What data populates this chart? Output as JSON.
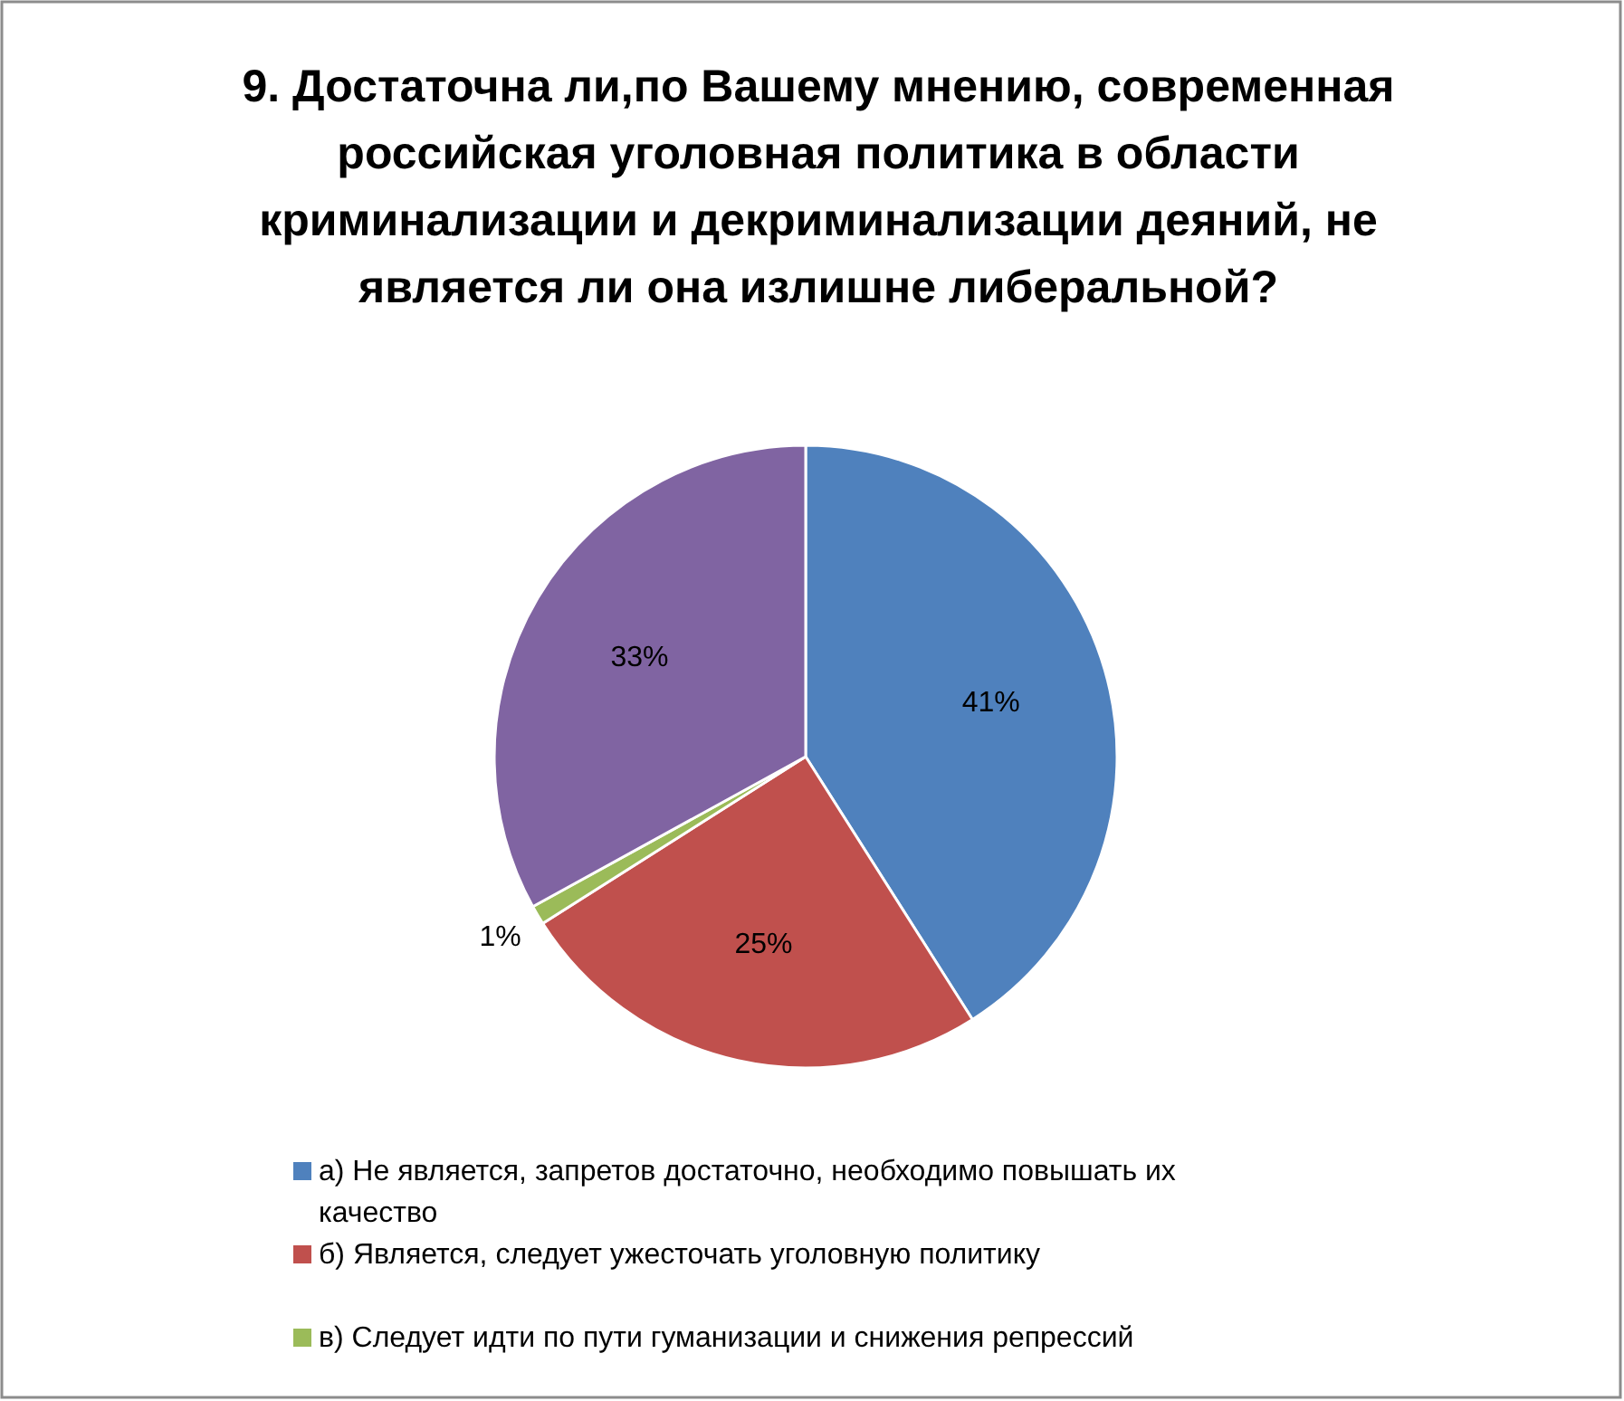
{
  "chart_data": {
    "type": "pie",
    "title": "9. Достаточна ли,по Вашему мнению, современная российская уголовная политика в области криминализации и декриминализации деяний, не является ли она излишне либеральной?",
    "categories": [
      "а) Не является, запретов достаточно, необходимо повышать их качество",
      "б) Является, следует ужесточать уголовную политику",
      "в) Следует идти по пути гуманизации и снижения репрессий",
      null
    ],
    "values": [
      41,
      25,
      1,
      33
    ],
    "colors": [
      "#4f81bd",
      "#c0504d",
      "#9bbb59",
      "#8064a2"
    ],
    "value_labels": [
      "41%",
      "25%",
      "1%",
      "33%"
    ],
    "legend": "bottom"
  }
}
